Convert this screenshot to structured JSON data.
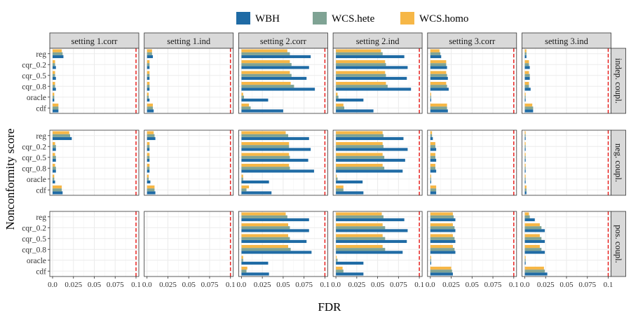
{
  "colors": {
    "WBH": "#1f6ba5",
    "WCS.hete": "#7fa394",
    "WCS.homo": "#f6b747",
    "ref_line": "#e8211f",
    "strip_bg": "#d9d9d9",
    "grid": "#ebebeb"
  },
  "chart_data": {
    "type": "bar",
    "orientation": "horizontal",
    "xlabel": "FDR",
    "ylabel": "Nonconformity score",
    "xlim": [
      0,
      0.1
    ],
    "x_ticks": [
      0.0,
      0.025,
      0.05,
      0.075,
      0.1
    ],
    "x_tick_labels": [
      "0.0",
      "0.025",
      "0.05",
      "0.075",
      "0.1"
    ],
    "reference_line": 0.1,
    "legend": {
      "position": "top",
      "entries": [
        "WBH",
        "WCS.hete",
        "WCS.homo"
      ]
    },
    "columns": [
      "setting 1.corr",
      "setting 1.ind",
      "setting 2.corr",
      "setting 2.ind",
      "setting 3.corr",
      "setting 3.ind"
    ],
    "rows": [
      "indep. coupl.",
      "neg. coupl.",
      "pos. coupl."
    ],
    "categories": [
      "reg",
      "cqr_0.2",
      "cqr_0.5",
      "cqr_0.8",
      "oracle",
      "cdf"
    ],
    "series_order": [
      "WBH",
      "WCS.hete",
      "WCS.homo"
    ],
    "panels": [
      [
        {
          "WBH": [
            0.013,
            0.004,
            0.004,
            0.004,
            0.002,
            0.007
          ],
          "WCS.hete": [
            0.012,
            0.003,
            0.003,
            0.003,
            0.002,
            0.007
          ],
          "WCS.homo": [
            0.011,
            0.003,
            0.003,
            0.003,
            0.002,
            0.007
          ]
        },
        {
          "WBH": [
            0.007,
            0.003,
            0.003,
            0.003,
            0.003,
            0.008
          ],
          "WCS.hete": [
            0.006,
            0.003,
            0.003,
            0.003,
            0.002,
            0.007
          ],
          "WCS.homo": [
            0.006,
            0.003,
            0.003,
            0.003,
            0.002,
            0.007
          ]
        },
        {
          "WBH": [
            0.083,
            0.081,
            0.078,
            0.088,
            0.032,
            0.05
          ],
          "WCS.hete": [
            0.058,
            0.06,
            0.06,
            0.063,
            0.003,
            0.011
          ],
          "WCS.homo": [
            0.055,
            0.058,
            0.058,
            0.059,
            0.002,
            0.009
          ]
        },
        {
          "WBH": [
            0.082,
            0.086,
            0.085,
            0.09,
            0.033,
            0.045
          ],
          "WCS.hete": [
            0.056,
            0.06,
            0.06,
            0.062,
            0.003,
            0.01
          ],
          "WCS.homo": [
            0.054,
            0.059,
            0.059,
            0.06,
            0.002,
            0.009
          ]
        },
        {
          "WBH": [
            0.013,
            0.02,
            0.021,
            0.022,
            0.001,
            0.021
          ],
          "WCS.hete": [
            0.012,
            0.019,
            0.02,
            0.02,
            0.001,
            0.02
          ],
          "WCS.homo": [
            0.011,
            0.019,
            0.019,
            0.019,
            0.001,
            0.02
          ]
        },
        {
          "WBH": [
            0.002,
            0.006,
            0.006,
            0.007,
            0.001,
            0.01
          ],
          "WCS.hete": [
            0.002,
            0.005,
            0.006,
            0.005,
            0.001,
            0.01
          ],
          "WCS.homo": [
            0.002,
            0.005,
            0.005,
            0.005,
            0.001,
            0.009
          ]
        }
      ],
      [
        {
          "WBH": [
            0.023,
            0.004,
            0.004,
            0.004,
            0.003,
            0.012
          ],
          "WCS.hete": [
            0.021,
            0.004,
            0.004,
            0.004,
            0.002,
            0.011
          ],
          "WCS.homo": [
            0.02,
            0.003,
            0.003,
            0.003,
            0.002,
            0.011
          ]
        },
        {
          "WBH": [
            0.01,
            0.003,
            0.003,
            0.003,
            0.004,
            0.01
          ],
          "WCS.hete": [
            0.009,
            0.003,
            0.003,
            0.003,
            0.002,
            0.009
          ],
          "WCS.homo": [
            0.008,
            0.003,
            0.003,
            0.003,
            0.002,
            0.009
          ]
        },
        {
          "WBH": [
            0.081,
            0.083,
            0.08,
            0.087,
            0.033,
            0.036
          ],
          "WCS.hete": [
            0.056,
            0.057,
            0.058,
            0.058,
            0.002,
            0.006
          ],
          "WCS.homo": [
            0.053,
            0.057,
            0.057,
            0.057,
            0.002,
            0.009
          ]
        },
        {
          "WBH": [
            0.081,
            0.086,
            0.083,
            0.08,
            0.032,
            0.033
          ],
          "WCS.hete": [
            0.057,
            0.057,
            0.058,
            0.058,
            0.002,
            0.009
          ],
          "WCS.homo": [
            0.056,
            0.056,
            0.056,
            0.056,
            0.001,
            0.009
          ]
        },
        {
          "WBH": [
            0.003,
            0.007,
            0.007,
            0.007,
            0.001,
            0.007
          ],
          "WCS.hete": [
            0.002,
            0.006,
            0.006,
            0.006,
            0.001,
            0.007
          ],
          "WCS.homo": [
            0.002,
            0.006,
            0.006,
            0.006,
            0.001,
            0.007
          ]
        },
        {
          "WBH": [
            0.001,
            0.001,
            0.001,
            0.001,
            0.001,
            0.002
          ],
          "WCS.hete": [
            0.001,
            0.001,
            0.001,
            0.001,
            0.001,
            0.002
          ],
          "WCS.homo": [
            0.001,
            0.001,
            0.001,
            0.001,
            0.001,
            0.002
          ]
        }
      ],
      [
        {
          "WBH": [
            0,
            0,
            0,
            0,
            0,
            0
          ],
          "WCS.hete": [
            0,
            0,
            0,
            0,
            0,
            0
          ],
          "WCS.homo": [
            0,
            0,
            0,
            0,
            0,
            0
          ]
        },
        {
          "WBH": [
            0,
            0,
            0,
            0,
            0,
            0
          ],
          "WCS.hete": [
            0,
            0,
            0,
            0,
            0,
            0
          ],
          "WCS.homo": [
            0,
            0,
            0,
            0,
            0,
            0
          ]
        },
        {
          "WBH": [
            0.081,
            0.081,
            0.078,
            0.084,
            0.032,
            0.033
          ],
          "WCS.hete": [
            0.055,
            0.058,
            0.058,
            0.059,
            0.002,
            0.006
          ],
          "WCS.homo": [
            0.053,
            0.056,
            0.056,
            0.056,
            0.002,
            0.007
          ]
        },
        {
          "WBH": [
            0.082,
            0.086,
            0.085,
            0.08,
            0.033,
            0.033
          ],
          "WCS.hete": [
            0.057,
            0.059,
            0.059,
            0.059,
            0.002,
            0.009
          ],
          "WCS.homo": [
            0.055,
            0.056,
            0.056,
            0.056,
            0.001,
            0.008
          ]
        },
        {
          "WBH": [
            0.03,
            0.03,
            0.03,
            0.03,
            0.001,
            0.027
          ],
          "WCS.hete": [
            0.028,
            0.029,
            0.029,
            0.029,
            0.001,
            0.026
          ],
          "WCS.homo": [
            0.027,
            0.027,
            0.027,
            0.027,
            0.001,
            0.025
          ]
        },
        {
          "WBH": [
            0.012,
            0.024,
            0.024,
            0.024,
            0.001,
            0.027
          ],
          "WCS.hete": [
            0.006,
            0.02,
            0.02,
            0.02,
            0.001,
            0.024
          ],
          "WCS.homo": [
            0.005,
            0.018,
            0.018,
            0.018,
            0.001,
            0.023
          ]
        }
      ]
    ]
  }
}
